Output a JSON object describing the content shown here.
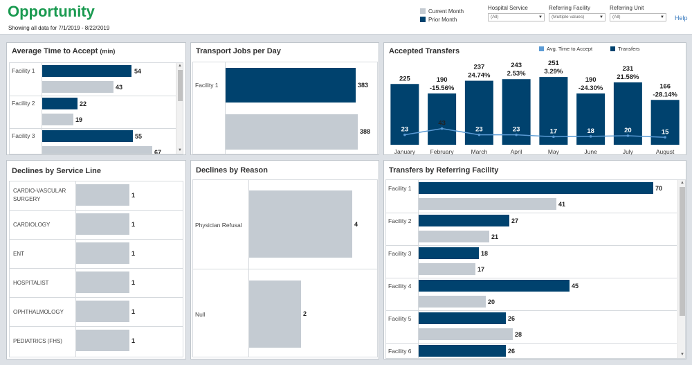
{
  "header": {
    "title": "Opportunity",
    "subtitle": "Showing all data for 7/1/2019 - 8/22/2019",
    "legend": [
      {
        "label": "Current Month",
        "color": "#c4cbd2"
      },
      {
        "label": "Prior Month",
        "color": "#00426e"
      }
    ],
    "filters": [
      {
        "label": "Hospital Service",
        "value": "(All)"
      },
      {
        "label": "Referring Facility",
        "value": "(Multiple values)"
      },
      {
        "label": "Referring Unit",
        "value": "(All)"
      }
    ],
    "help": "Help"
  },
  "avg_time": {
    "title": "Average Time to Accept",
    "title_unit": "(min)",
    "rows": [
      {
        "label": "Facility 1",
        "prior": 54,
        "current": 43
      },
      {
        "label": "Facility 2",
        "prior": 22,
        "current": 19
      },
      {
        "label": "Facility 3",
        "prior": 55,
        "current": 67
      }
    ]
  },
  "transport": {
    "title": "Transport Jobs per Day",
    "rows": [
      {
        "label": "Facility 1",
        "prior": 383,
        "current": 388
      }
    ]
  },
  "accepted": {
    "title": "Accepted Transfers",
    "legend": [
      {
        "label": "Avg. Time to Accept",
        "color": "#5b9bd5"
      },
      {
        "label": "Transfers",
        "color": "#00426e"
      }
    ]
  },
  "declines_service": {
    "title": "Declines by Service Line",
    "rows": [
      {
        "label": "CARDIO-VASCULAR SURGERY",
        "value": 1
      },
      {
        "label": "CARDIOLOGY",
        "value": 1
      },
      {
        "label": "ENT",
        "value": 1
      },
      {
        "label": "HOSPITALIST",
        "value": 1
      },
      {
        "label": "OPHTHALMOLOGY",
        "value": 1
      },
      {
        "label": "PEDIATRICS (FHS)",
        "value": 1
      }
    ]
  },
  "declines_reason": {
    "title": "Declines by Reason",
    "rows": [
      {
        "label": "Physician Refusal",
        "value": 4
      },
      {
        "label": "Null",
        "value": 2
      }
    ]
  },
  "referring": {
    "title": "Transfers by Referring Facility",
    "rows": [
      {
        "label": "Facility 1",
        "prior": 70,
        "current": 41
      },
      {
        "label": "Facility 2",
        "prior": 27,
        "current": 21
      },
      {
        "label": "Facility 3",
        "prior": 18,
        "current": 17
      },
      {
        "label": "Facility 4",
        "prior": 45,
        "current": 20
      },
      {
        "label": "Facility 5",
        "prior": 26,
        "current": 28
      },
      {
        "label": "Facility 6",
        "prior": 26,
        "current": null
      }
    ]
  },
  "chart_data": {
    "type": "bar",
    "title": "Accepted Transfers",
    "categories": [
      "January",
      "February",
      "March",
      "April",
      "May",
      "June",
      "July",
      "August"
    ],
    "series": [
      {
        "name": "Transfers",
        "values": [
          225,
          190,
          237,
          243,
          251,
          190,
          231,
          166
        ]
      },
      {
        "name": "Avg. Time to Accept",
        "values": [
          23,
          43,
          23,
          23,
          17,
          18,
          20,
          15
        ]
      }
    ],
    "pct_change": [
      "",
      "-15.56%",
      "24.74%",
      "2.53%",
      "3.29%",
      "-24.30%",
      "21.58%",
      "-28.14%"
    ],
    "ylim": [
      0,
      260
    ],
    "legend_position": "top-right"
  }
}
